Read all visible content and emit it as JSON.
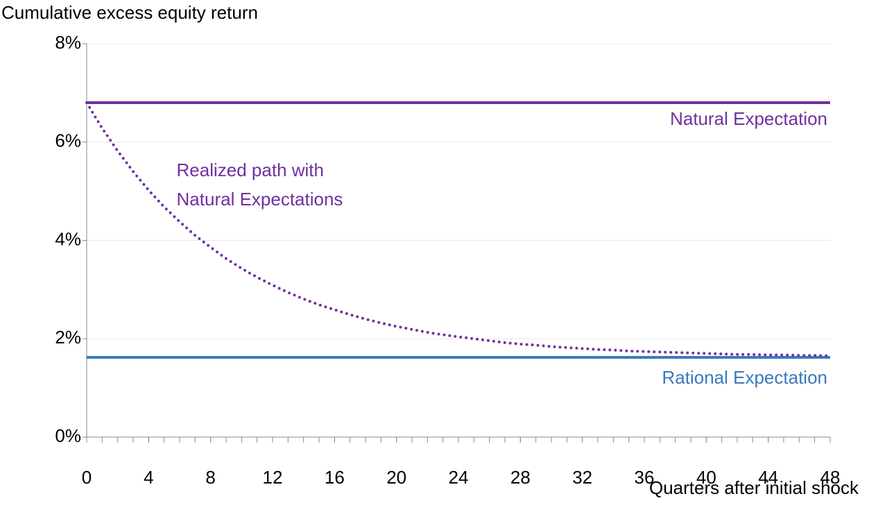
{
  "chart_data": {
    "type": "line",
    "y_axis_label": "Cumulative excess equity return",
    "x_axis_label": "Quarters after initial shock",
    "xlim": [
      0,
      48
    ],
    "xticks": [
      0,
      4,
      8,
      12,
      16,
      20,
      24,
      28,
      32,
      36,
      40,
      44,
      48
    ],
    "x_minor_tick_step": 1,
    "ylim": [
      0,
      8
    ],
    "yticks": [
      {
        "value": 0,
        "label": "0%"
      },
      {
        "value": 2,
        "label": "2%"
      },
      {
        "value": 4,
        "label": "4%"
      },
      {
        "value": 6,
        "label": "6%"
      },
      {
        "value": 8,
        "label": "8%"
      }
    ],
    "grid": true,
    "series": [
      {
        "label": [
          "Natural Expectation"
        ],
        "color": "#7030a0",
        "style": "solid",
        "x": [
          0,
          48
        ],
        "values": [
          6.8,
          6.8
        ]
      },
      {
        "label": [
          "Rational Expectation"
        ],
        "color": "#3a78bd",
        "style": "solid",
        "x": [
          0,
          48
        ],
        "values": [
          1.62,
          1.62
        ]
      },
      {
        "label": [
          "Realized path with",
          "Natural Expectations"
        ],
        "color": "#7030a0",
        "style": "dotted",
        "x": [
          0,
          1,
          2,
          3,
          4,
          5,
          6,
          7,
          8,
          9,
          10,
          11,
          12,
          13,
          14,
          15,
          16,
          17,
          18,
          19,
          20,
          21,
          22,
          23,
          24,
          25,
          26,
          27,
          28,
          29,
          30,
          31,
          32,
          33,
          34,
          35,
          36,
          37,
          38,
          39,
          40,
          41,
          42,
          43,
          44,
          45,
          46,
          47,
          48
        ],
        "values": [
          6.8,
          6.28,
          5.82,
          5.4,
          5.02,
          4.68,
          4.38,
          4.1,
          3.86,
          3.63,
          3.43,
          3.25,
          3.09,
          2.94,
          2.81,
          2.69,
          2.59,
          2.49,
          2.4,
          2.32,
          2.25,
          2.19,
          2.13,
          2.08,
          2.04,
          2.0,
          1.96,
          1.92,
          1.89,
          1.87,
          1.84,
          1.82,
          1.8,
          1.78,
          1.77,
          1.75,
          1.74,
          1.73,
          1.72,
          1.71,
          1.7,
          1.69,
          1.68,
          1.68,
          1.67,
          1.67,
          1.66,
          1.66,
          1.65
        ]
      }
    ]
  }
}
